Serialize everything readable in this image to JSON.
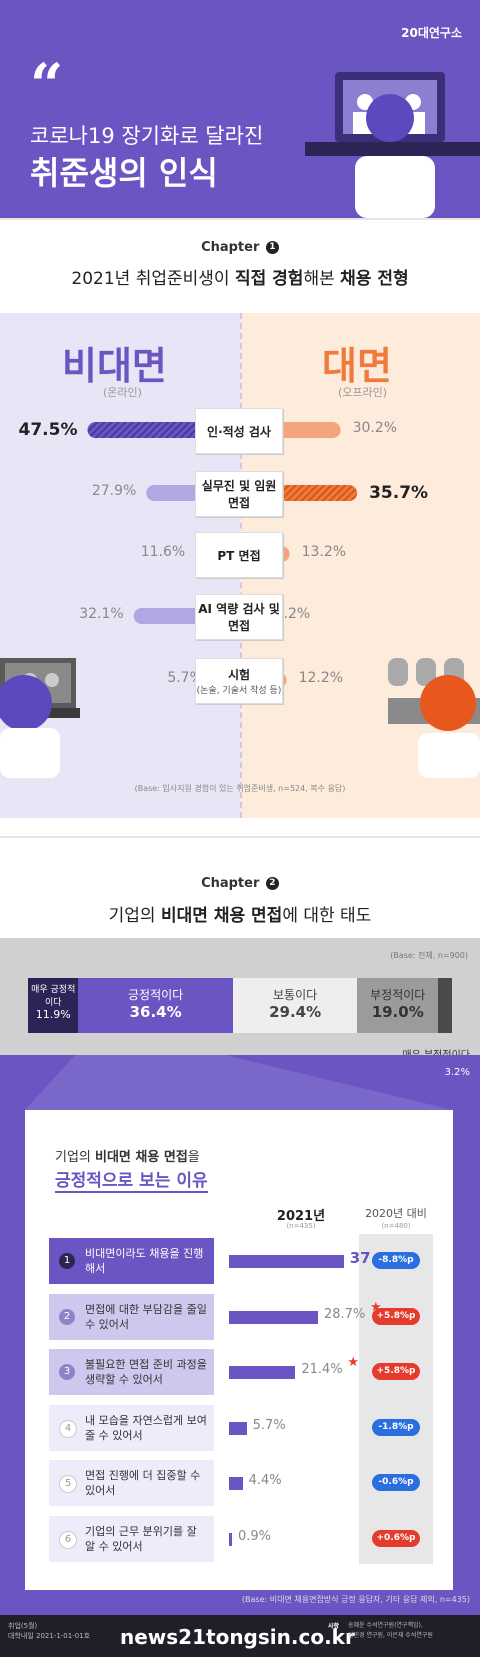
{
  "header": {
    "quote": "“",
    "title_line1": "코로나19 장기화로 달라진",
    "title_line2": "취준생의 인식",
    "brand": "20대연구소"
  },
  "chapter1": {
    "label": "Chapter",
    "num": "1",
    "subtitle_pre": "2021년 취업준비생이 ",
    "subtitle_b1": "직접 경험",
    "subtitle_mid": "해본 ",
    "subtitle_b2": "채용 전형"
  },
  "chapter2": {
    "label": "Chapter",
    "num": "2",
    "subtitle_pre": "기업의 ",
    "subtitle_b1": "비대면 채용 면접",
    "subtitle_post": "에 대한 태도"
  },
  "section1": {
    "left_title": "비대면",
    "left_sub": "(온라인)",
    "right_title": "대면",
    "right_sub": "(오프라인)",
    "note": "(Base: 입사지원 경험이 있는 취업준비생, n=524, 복수 응답)"
  },
  "section2": {
    "base": "(Base: 전체, n=900)",
    "strong_neg_label": "매우 부정적이다",
    "strong_neg_value": "3.2%"
  },
  "reasons": {
    "title_line1_pre": "기업의 ",
    "title_line1_b": "비대면 채용 면접",
    "title_line1_post": "을",
    "title_line2": "긍정적으로 보는 이유",
    "col_2021": "2021년",
    "col_2021_n": "(n=435)",
    "col_2020": "2020년 대비",
    "col_2020_n": "(n=480)",
    "note": "(Base: 비대면 채용면접방식 긍정 응답자, 기타 응답 제외, n=435)"
  },
  "footer": {
    "src_line1": "취업(5월)",
    "src_line2": "대학내일 2021-1-01-01호",
    "watermark": "news21tongsin.co.kr",
    "credit_label": "사항",
    "credit_line1": "송혜윤 수석연구원(연구책임),",
    "credit_line2": "김민경 연구원, 이은재 수석연구원"
  },
  "colors": {
    "purple": "#6a55c2",
    "orange": "#f07a3c",
    "dark_orange": "#e8571e",
    "light_purple": "#b2a7e0",
    "red": "#e53b2c",
    "blue": "#2a6ee0"
  },
  "chart_data": [
    {
      "type": "bar",
      "categories": [
        "인·적성 검사",
        "실무진 및 임원 면접",
        "PT 면접",
        "AI 역량 검사 및 면접",
        "시험"
      ],
      "category_subs": [
        "",
        "",
        "",
        "",
        "(논술, 기술서 작성 등)"
      ],
      "series": [
        {
          "name": "비대면",
          "values": [
            47.5,
            27.9,
            11.6,
            32.1,
            5.7
          ]
        },
        {
          "name": "대면",
          "values": [
            30.2,
            35.7,
            13.2,
            4.2,
            12.2
          ]
        }
      ],
      "value_labels_left": [
        "47.5%",
        "27.9%",
        "11.6%",
        "32.1%",
        "5.7%"
      ],
      "value_labels_right": [
        "30.2%",
        "35.7%",
        "13.2%",
        "4.2%",
        "12.2%"
      ],
      "highlight_left": 0,
      "highlight_right": 1
    },
    {
      "type": "bar",
      "orientation": "stacked-horizontal",
      "categories": [
        "매우 긍정적이다",
        "긍정적이다",
        "보통이다",
        "부정적이다",
        "매우 부정적이다"
      ],
      "values": [
        11.9,
        36.4,
        29.4,
        19.0,
        3.2
      ],
      "value_labels": [
        "11.9%",
        "36.4%",
        "29.4%",
        "19.0%",
        "3.2%"
      ],
      "segment_colors": [
        "#2b2456",
        "#6a55c2",
        "#eeeeee",
        "#9b9b9b",
        "#4a4a4a"
      ]
    },
    {
      "type": "bar",
      "categories": [
        "비대면이라도 채용을 진행해서",
        "면접에 대한 부담감을 줄일 수 있어서",
        "불필요한 면접 준비 과정을 생략할 수 있어서",
        "내 모습을 자연스럽게 보여줄 수 있어서",
        "면접 진행에 더 집중할 수 있어서",
        "기업의 근무 분위기를 잘 알 수 있어서"
      ],
      "values": [
        37.0,
        28.7,
        21.4,
        5.7,
        4.4,
        0.9
      ],
      "value_labels": [
        "37.0%",
        "28.7%",
        "21.4%",
        "5.7%",
        "4.4%",
        "0.9%"
      ],
      "change_vs_2020": [
        "-8.8%p",
        "+5.8%p",
        "+5.8%p",
        "-1.8%p",
        "-0.6%p",
        "+0.6%p"
      ],
      "change_sign": [
        -1,
        1,
        1,
        -1,
        -1,
        1
      ],
      "starred": [
        false,
        true,
        true,
        false,
        false,
        false
      ]
    }
  ]
}
